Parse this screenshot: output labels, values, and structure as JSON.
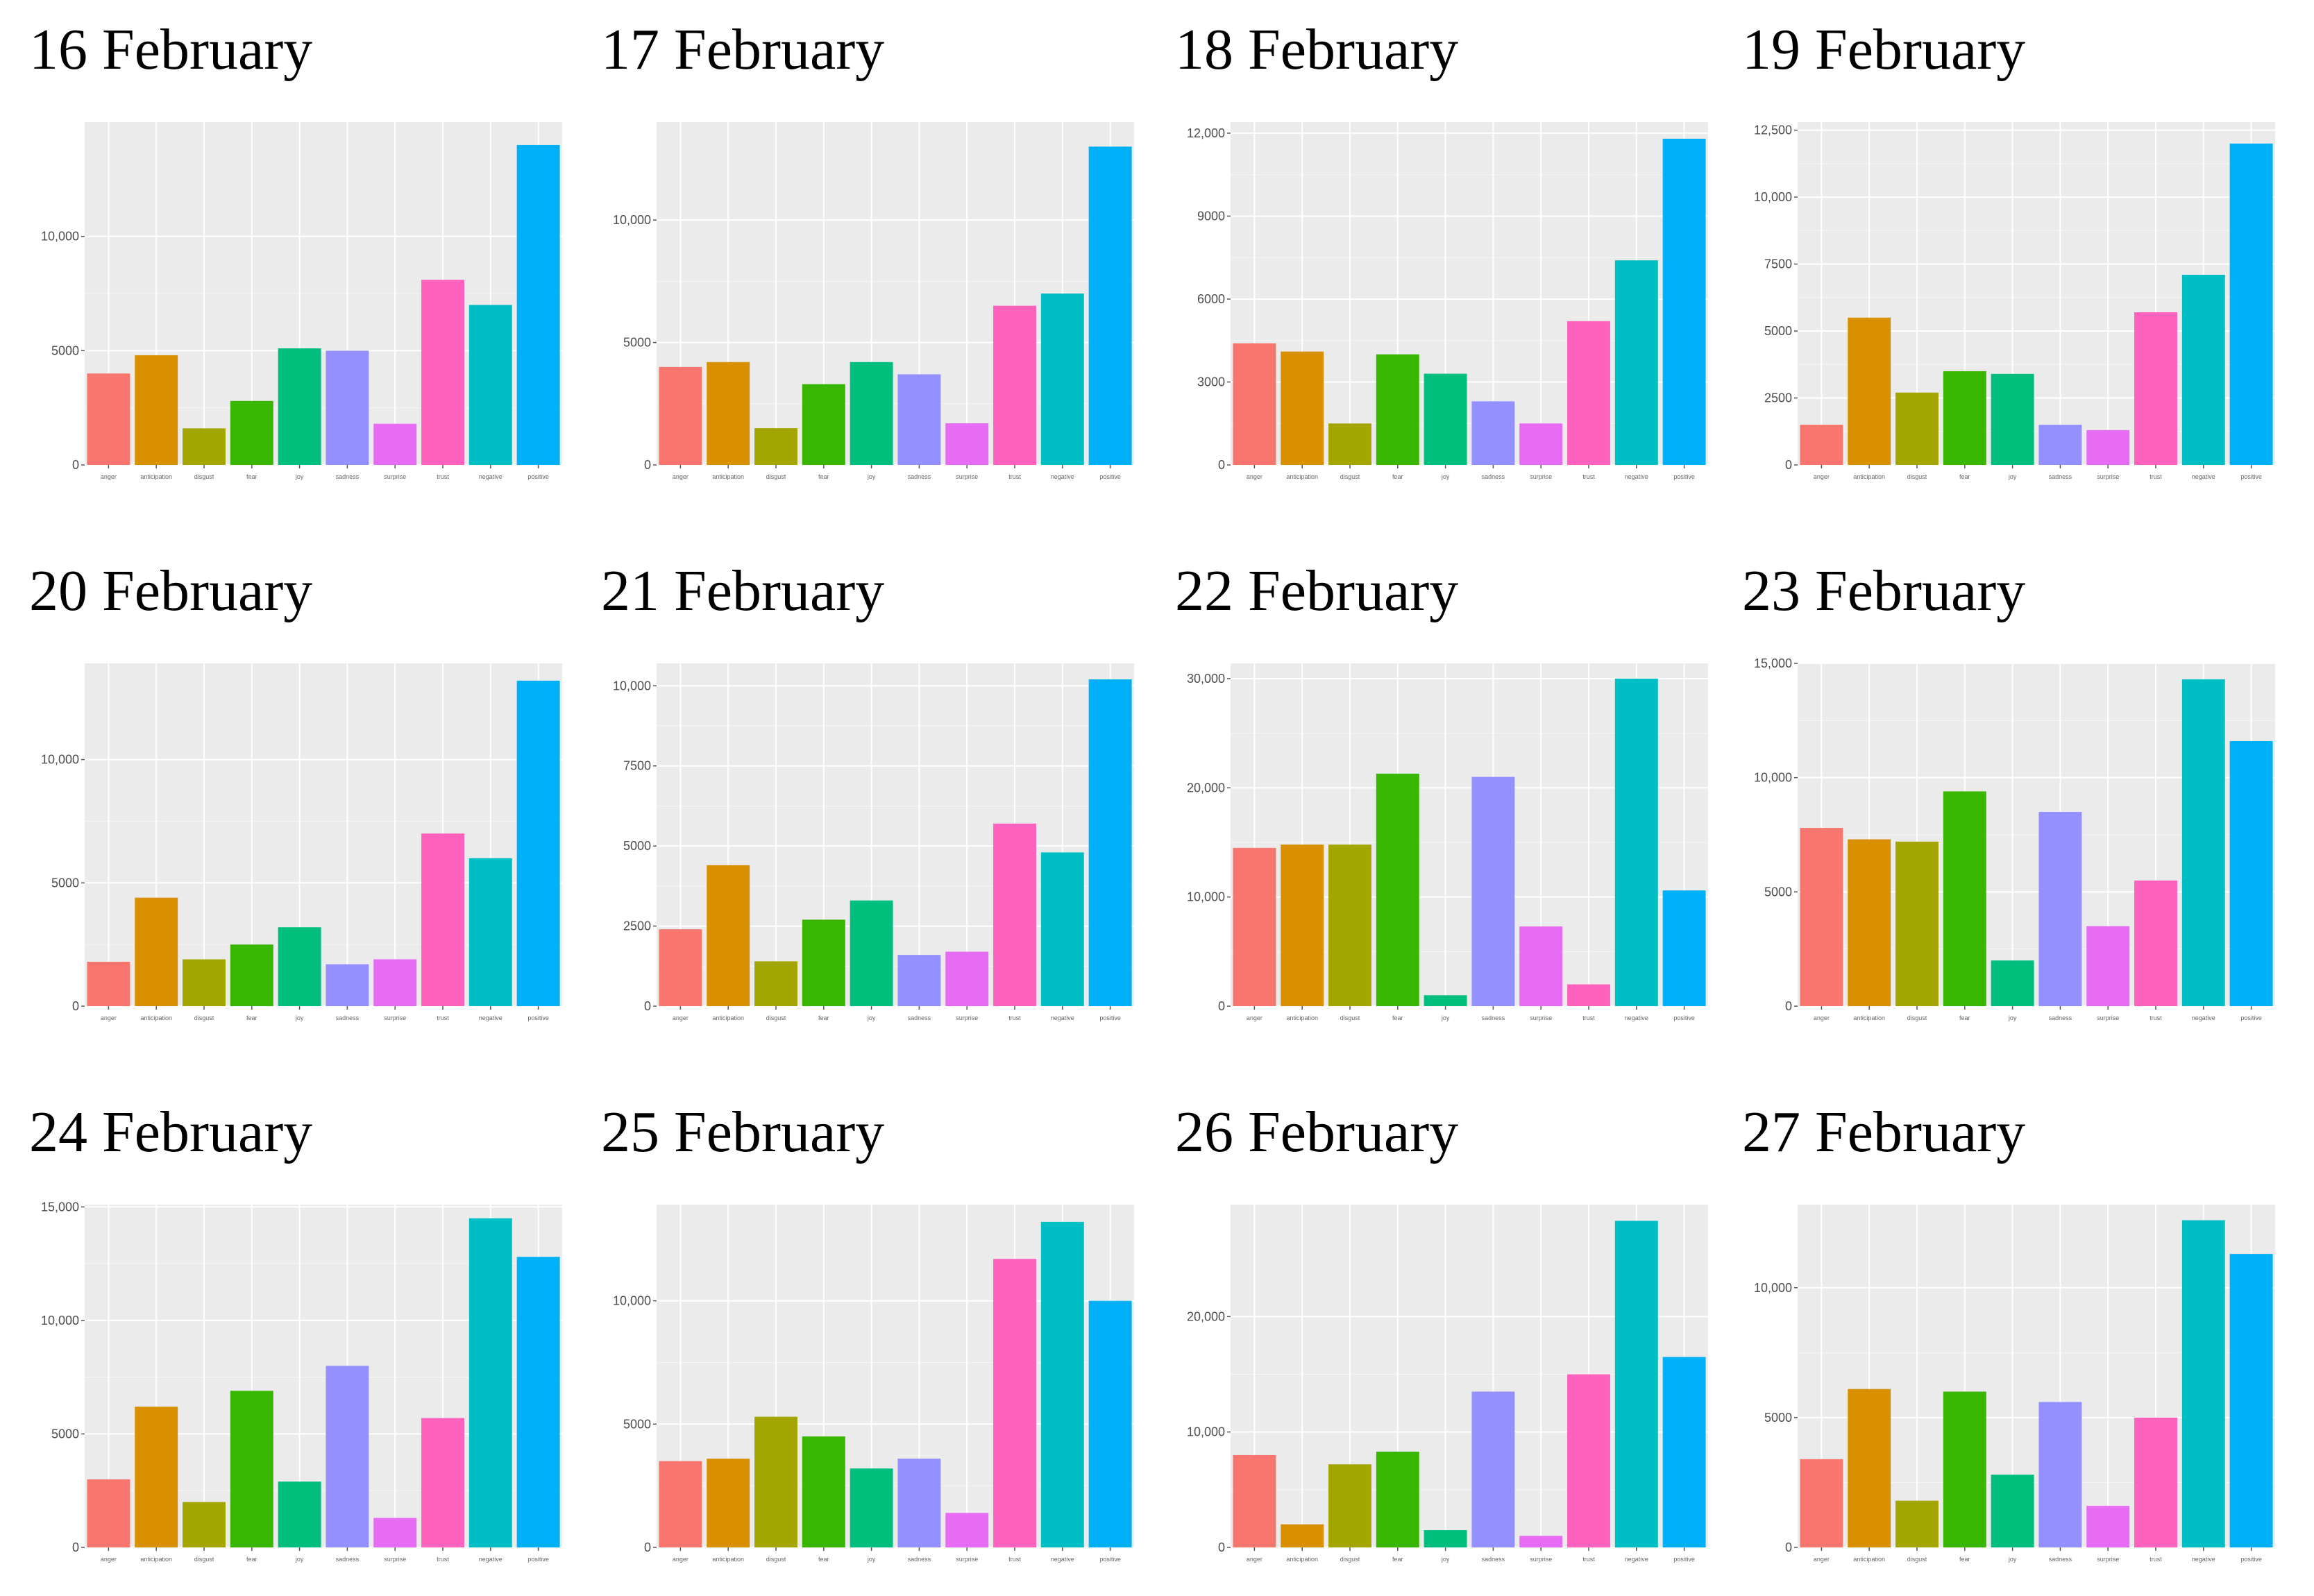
{
  "categories": [
    "anger",
    "anticipation",
    "disgust",
    "fear",
    "joy",
    "sadness",
    "surprise",
    "trust",
    "negative",
    "positive"
  ],
  "colors": [
    "#F8766D",
    "#D89000",
    "#A3A500",
    "#39B600",
    "#00BF7D",
    "#9590FF",
    "#E76BF3",
    "#FF62BC",
    "#00BFC4",
    "#00B0F6"
  ],
  "chart_data": [
    {
      "type": "bar",
      "title": "16 February",
      "categories": [
        "anger",
        "anticipation",
        "disgust",
        "fear",
        "joy",
        "sadness",
        "surprise",
        "trust",
        "negative",
        "positive"
      ],
      "values": [
        4000,
        4800,
        1600,
        2800,
        5100,
        5000,
        1800,
        8100,
        7000,
        14000
      ],
      "ylim": [
        0,
        15000
      ],
      "ticks": [
        0,
        5000,
        10000
      ],
      "tick_labels": [
        "0",
        "5000",
        "10,000"
      ]
    },
    {
      "type": "bar",
      "title": "17 February",
      "categories": [
        "anger",
        "anticipation",
        "disgust",
        "fear",
        "joy",
        "sadness",
        "surprise",
        "trust",
        "negative",
        "positive"
      ],
      "values": [
        4000,
        4200,
        1500,
        3300,
        4200,
        3700,
        1700,
        6500,
        7000,
        13000
      ],
      "ylim": [
        0,
        14000
      ],
      "ticks": [
        0,
        5000,
        10000
      ],
      "tick_labels": [
        "0",
        "5000",
        "10,000"
      ]
    },
    {
      "type": "bar",
      "title": "18 February",
      "categories": [
        "anger",
        "anticipation",
        "disgust",
        "fear",
        "joy",
        "sadness",
        "surprise",
        "trust",
        "negative",
        "positive"
      ],
      "values": [
        4400,
        4100,
        1500,
        4000,
        3300,
        2300,
        1500,
        5200,
        7400,
        11800
      ],
      "ylim": [
        0,
        12400
      ],
      "ticks": [
        0,
        3000,
        6000,
        9000,
        12000
      ],
      "tick_labels": [
        "0",
        "3000",
        "6000",
        "9000",
        "12,000"
      ]
    },
    {
      "type": "bar",
      "title": "19 February",
      "categories": [
        "anger",
        "anticipation",
        "disgust",
        "fear",
        "joy",
        "sadness",
        "surprise",
        "trust",
        "negative",
        "positive"
      ],
      "values": [
        1500,
        5500,
        2700,
        3500,
        3400,
        1500,
        1300,
        5700,
        7100,
        12000
      ],
      "ylim": [
        0,
        12800
      ],
      "ticks": [
        0,
        2500,
        5000,
        7500,
        10000,
        12500
      ],
      "tick_labels": [
        "0",
        "2500",
        "5000",
        "7500",
        "10,000",
        "12,500"
      ]
    },
    {
      "type": "bar",
      "title": "20 February",
      "categories": [
        "anger",
        "anticipation",
        "disgust",
        "fear",
        "joy",
        "sadness",
        "surprise",
        "trust",
        "negative",
        "positive"
      ],
      "values": [
        1800,
        4400,
        1900,
        2500,
        3200,
        1700,
        1900,
        7000,
        6000,
        13200
      ],
      "ylim": [
        0,
        13900
      ],
      "ticks": [
        0,
        5000,
        10000
      ],
      "tick_labels": [
        "0",
        "5000",
        "10,000"
      ]
    },
    {
      "type": "bar",
      "title": "21 February",
      "categories": [
        "anger",
        "anticipation",
        "disgust",
        "fear",
        "joy",
        "sadness",
        "surprise",
        "trust",
        "negative",
        "positive"
      ],
      "values": [
        2400,
        4400,
        1400,
        2700,
        3300,
        1600,
        1700,
        5700,
        4800,
        10200
      ],
      "ylim": [
        0,
        10700
      ],
      "ticks": [
        0,
        2500,
        5000,
        7500,
        10000
      ],
      "tick_labels": [
        "0",
        "2500",
        "5000",
        "7500",
        "10,000"
      ]
    },
    {
      "type": "bar",
      "title": "22 February",
      "categories": [
        "anger",
        "anticipation",
        "disgust",
        "fear",
        "joy",
        "sadness",
        "surprise",
        "trust",
        "negative",
        "positive"
      ],
      "values": [
        14500,
        14800,
        14800,
        21300,
        1000,
        21000,
        7300,
        2000,
        30000,
        10600
      ],
      "ylim": [
        0,
        31400
      ],
      "ticks": [
        0,
        10000,
        20000,
        30000
      ],
      "tick_labels": [
        "0",
        "10,000",
        "20,000",
        "30,000"
      ]
    },
    {
      "type": "bar",
      "title": "23 February",
      "categories": [
        "anger",
        "anticipation",
        "disgust",
        "fear",
        "joy",
        "sadness",
        "surprise",
        "trust",
        "negative",
        "positive"
      ],
      "values": [
        7800,
        7300,
        7200,
        9400,
        2000,
        8500,
        3500,
        5500,
        14300,
        11600
      ],
      "ylim": [
        0,
        15000
      ],
      "ticks": [
        0,
        5000,
        10000,
        15000
      ],
      "tick_labels": [
        "0",
        "5000",
        "10,000",
        "15,000"
      ]
    },
    {
      "type": "bar",
      "title": "24 February",
      "categories": [
        "anger",
        "anticipation",
        "disgust",
        "fear",
        "joy",
        "sadness",
        "surprise",
        "trust",
        "negative",
        "positive"
      ],
      "values": [
        3000,
        6200,
        2000,
        6900,
        2900,
        8000,
        1300,
        5700,
        14500,
        12800
      ],
      "ylim": [
        0,
        15100
      ],
      "ticks": [
        0,
        5000,
        10000,
        15000
      ],
      "tick_labels": [
        "0",
        "5000",
        "10,000",
        "15,000"
      ]
    },
    {
      "type": "bar",
      "title": "25 February",
      "categories": [
        "anger",
        "anticipation",
        "disgust",
        "fear",
        "joy",
        "sadness",
        "surprise",
        "trust",
        "negative",
        "positive"
      ],
      "values": [
        3500,
        3600,
        5300,
        4500,
        3200,
        3600,
        1400,
        11700,
        13200,
        10000
      ],
      "ylim": [
        0,
        13900
      ],
      "ticks": [
        0,
        5000,
        10000
      ],
      "tick_labels": [
        "0",
        "5000",
        "10,000"
      ]
    },
    {
      "type": "bar",
      "title": "26 February",
      "categories": [
        "anger",
        "anticipation",
        "disgust",
        "fear",
        "joy",
        "sadness",
        "surprise",
        "trust",
        "negative",
        "positive"
      ],
      "values": [
        8000,
        2000,
        7200,
        8300,
        1500,
        13500,
        1000,
        15000,
        28300,
        16500
      ],
      "ylim": [
        0,
        29700
      ],
      "ticks": [
        0,
        10000,
        20000
      ],
      "tick_labels": [
        "0",
        "10,000",
        "20,000"
      ]
    },
    {
      "type": "bar",
      "title": "27 February",
      "categories": [
        "anger",
        "anticipation",
        "disgust",
        "fear",
        "joy",
        "sadness",
        "surprise",
        "trust",
        "negative",
        "positive"
      ],
      "values": [
        3400,
        6100,
        1800,
        6000,
        2800,
        5600,
        1600,
        5000,
        12600,
        11300
      ],
      "ylim": [
        0,
        13200
      ],
      "ticks": [
        0,
        5000,
        10000
      ],
      "tick_labels": [
        "0",
        "5000",
        "10,000"
      ]
    }
  ]
}
